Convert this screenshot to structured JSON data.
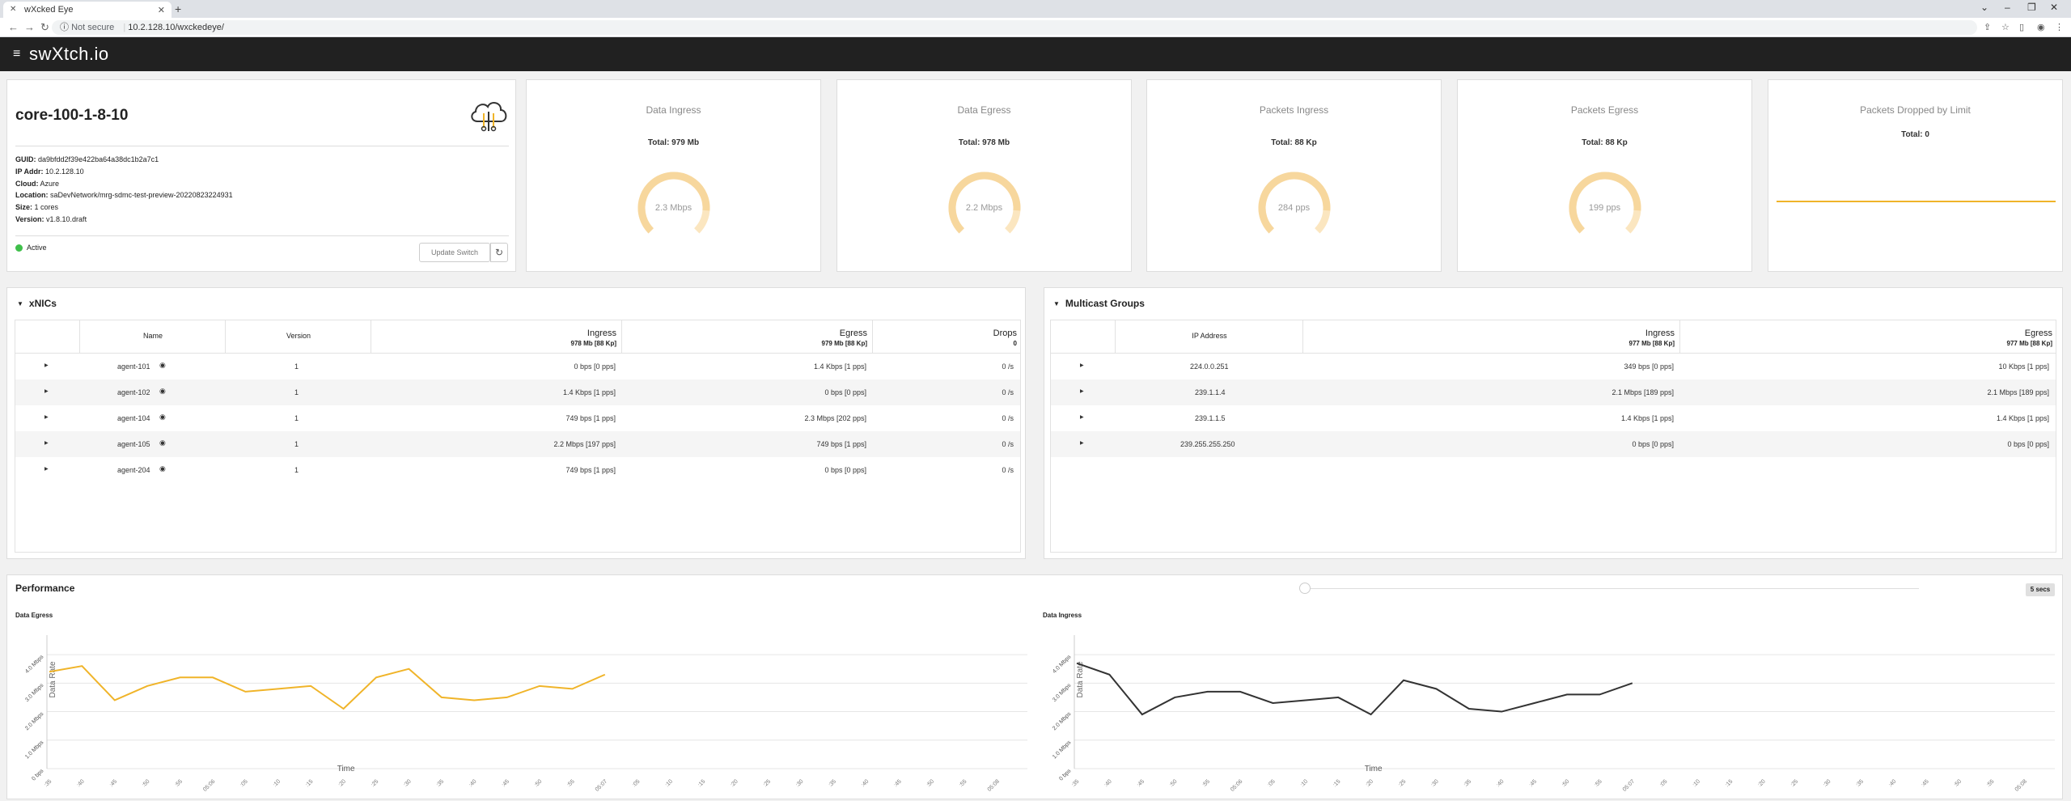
{
  "browser": {
    "tab_title": "wXcked Eye",
    "new_tab": "+",
    "not_secure": "Not secure",
    "url": "10.2.128.10/wxckedeye/"
  },
  "app": {
    "brand": "swXtch.io"
  },
  "switch": {
    "name": "core-100-1-8-10",
    "info": [
      {
        "label": "GUID:",
        "value": "da9bfdd2f39e422ba64a38dc1b2a7c1"
      },
      {
        "label": "IP Addr:",
        "value": "10.2.128.10"
      },
      {
        "label": "Cloud:",
        "value": "Azure"
      },
      {
        "label": "Location:",
        "value": "saDevNetwork/mrg-sdmc-test-preview-20220823224931"
      },
      {
        "label": "Size:",
        "value": "1 cores"
      },
      {
        "label": "Version:",
        "value": "v1.8.10.draft"
      }
    ],
    "status": "Active",
    "update_label": "Update Switch"
  },
  "stats": [
    {
      "title": "Data Ingress",
      "total": "Total: 979 Mb",
      "value": "2.3 Mbps",
      "fill": 0.85
    },
    {
      "title": "Data Egress",
      "total": "Total: 978 Mb",
      "value": "2.2 Mbps",
      "fill": 0.85
    },
    {
      "title": "Packets Ingress",
      "total": "Total: 88 Kp",
      "value": "284 pps",
      "fill": 0.85
    },
    {
      "title": "Packets Egress",
      "total": "Total: 88 Kp",
      "value": "199 pps",
      "fill": 0.85
    },
    {
      "title": "Packets Dropped by Limit",
      "total": "Total: 0"
    }
  ],
  "xnics": {
    "title": "xNICs",
    "headers": {
      "name": "Name",
      "version": "Version",
      "ingress": "Ingress",
      "ingress_sub": "978 Mb [88 Kp]",
      "egress": "Egress",
      "egress_sub": "979 Mb [88 Kp]",
      "drops": "Drops",
      "drops_sub": "0"
    },
    "rows": [
      {
        "name": "agent-101",
        "version": "1",
        "ingress": "0 bps [0 pps]",
        "egress": "1.4 Kbps [1 pps]",
        "drops": "0 /s"
      },
      {
        "name": "agent-102",
        "version": "1",
        "ingress": "1.4 Kbps [1 pps]",
        "egress": "0 bps [0 pps]",
        "drops": "0 /s"
      },
      {
        "name": "agent-104",
        "version": "1",
        "ingress": "749 bps [1 pps]",
        "egress": "2.3 Mbps [202 pps]",
        "drops": "0 /s"
      },
      {
        "name": "agent-105",
        "version": "1",
        "ingress": "2.2 Mbps [197 pps]",
        "egress": "749 bps [1 pps]",
        "drops": "0 /s"
      },
      {
        "name": "agent-204",
        "version": "1",
        "ingress": "749 bps [1 pps]",
        "egress": "0 bps [0 pps]",
        "drops": "0 /s"
      }
    ]
  },
  "multicast": {
    "title": "Multicast Groups",
    "headers": {
      "ip": "IP Address",
      "ingress": "Ingress",
      "ingress_sub": "977 Mb [88 Kp]",
      "egress": "Egress",
      "egress_sub": "977 Mb [88 Kp]"
    },
    "rows": [
      {
        "ip": "224.0.0.251",
        "ingress": "349 bps [0 pps]",
        "egress": "10 Kbps [1 pps]"
      },
      {
        "ip": "239.1.1.4",
        "ingress": "2.1 Mbps [189 pps]",
        "egress": "2.1 Mbps [189 pps]"
      },
      {
        "ip": "239.1.1.5",
        "ingress": "1.4 Kbps [1 pps]",
        "egress": "1.4 Kbps [1 pps]"
      },
      {
        "ip": "239.255.255.250",
        "ingress": "0 bps [0 pps]",
        "egress": "0 bps [0 pps]"
      }
    ]
  },
  "performance": {
    "title": "Performance",
    "interval": "5 secs"
  },
  "chart_data": [
    {
      "type": "line",
      "title": "Data Egress",
      "xlabel": "Time",
      "ylabel": "Data Rate",
      "yticks": [
        "0 bps",
        "1.0 Mbps",
        "2.0 Mbps",
        "3.0 Mbps",
        "4.0 Mbps"
      ],
      "ylim": [
        0,
        4.4
      ],
      "xticks": [
        ":35",
        ":40",
        ":45",
        ":50",
        ":55",
        "05:06",
        ":05",
        ":10",
        ":15",
        ":20",
        ":25",
        ":30",
        ":35",
        ":40",
        ":45",
        ":50",
        ":55",
        "05:07",
        ":05",
        ":10",
        ":15",
        ":20",
        ":25",
        ":30",
        ":35",
        ":40",
        ":45",
        ":50",
        ":55",
        "05:08"
      ],
      "color": "#f0b429",
      "series": [
        {
          "values": [
            3.4,
            3.6,
            2.4,
            2.9,
            3.2,
            3.2,
            2.7,
            2.8,
            2.9,
            2.1,
            3.2,
            3.5,
            2.5,
            2.4,
            2.5,
            2.9,
            2.8,
            3.3
          ]
        }
      ]
    },
    {
      "type": "line",
      "title": "Data Ingress",
      "xlabel": "Time",
      "ylabel": "Data Rate",
      "yticks": [
        "0 bps",
        "1.0 Mbps",
        "2.0 Mbps",
        "3.0 Mbps",
        "4.0 Mbps"
      ],
      "ylim": [
        0,
        4.4
      ],
      "xticks": [
        ":35",
        ":40",
        ":45",
        ":50",
        ":55",
        "05:06",
        ":05",
        ":10",
        ":15",
        ":20",
        ":25",
        ":30",
        ":35",
        ":40",
        ":45",
        ":50",
        ":55",
        "05:07",
        ":05",
        ":10",
        ":15",
        ":20",
        ":25",
        ":30",
        ":35",
        ":40",
        ":45",
        ":50",
        ":55",
        "05:08"
      ],
      "color": "#333333",
      "series": [
        {
          "values": [
            3.7,
            3.3,
            1.9,
            2.5,
            2.7,
            2.7,
            2.3,
            2.4,
            2.5,
            1.9,
            3.1,
            2.8,
            2.1,
            2.0,
            2.3,
            2.6,
            2.6,
            3.0
          ]
        }
      ]
    }
  ]
}
